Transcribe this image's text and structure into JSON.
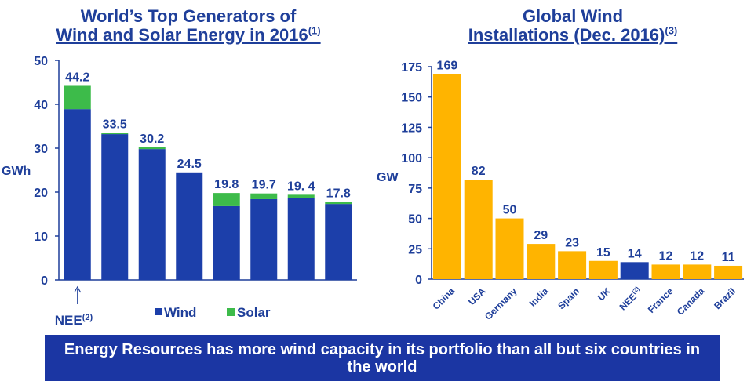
{
  "left_title": {
    "line1": "World’s Top Generators of",
    "line2": "Wind and Solar Energy in 2016",
    "sup": "(1)"
  },
  "right_title": {
    "line1": "Global Wind",
    "line2": "Installations (Dec. 2016)",
    "sup": "(3)"
  },
  "banner": "Energy Resources has more wind capacity in its portfolio than all but six countries in the world",
  "colors": {
    "wind": "#1c3faa",
    "solar": "#3dbb4a",
    "country": "#ffb400",
    "nee_highlight": "#1c3faa",
    "text": "#1f3f9a"
  },
  "chart_data": [
    {
      "type": "bar",
      "stacked": true,
      "ylabel": "GWh",
      "ylim": [
        0,
        50
      ],
      "yticks": [
        0,
        10,
        20,
        30,
        40,
        50
      ],
      "categories": [
        "NEE",
        "",
        "",
        "",
        "",
        "",
        "",
        ""
      ],
      "category_sup": [
        "(2)",
        "",
        "",
        "",
        "",
        "",
        "",
        ""
      ],
      "total_labels": [
        "44.2",
        "33.5",
        "30.2",
        "24.5",
        "19.8",
        "19.7",
        "19. 4",
        "17.8"
      ],
      "series": [
        {
          "name": "Wind",
          "values": [
            38.9,
            33.2,
            29.8,
            24.5,
            16.8,
            18.4,
            18.6,
            17.3
          ]
        },
        {
          "name": "Solar",
          "values": [
            5.3,
            0.3,
            0.4,
            0.0,
            3.0,
            1.3,
            0.8,
            0.5
          ]
        }
      ],
      "legend": "bottom"
    },
    {
      "type": "bar",
      "ylabel": "GW",
      "ylim": [
        0,
        175
      ],
      "yticks": [
        0,
        25,
        50,
        75,
        100,
        125,
        150,
        175
      ],
      "categories": [
        "China",
        "USA",
        "Germany",
        "India",
        "Spain",
        "UK",
        "NEE",
        "France",
        "Canada",
        "Brazil"
      ],
      "category_sup": [
        "",
        "",
        "",
        "",
        "",
        "",
        "(2)",
        "",
        "",
        ""
      ],
      "values": [
        169,
        82,
        50,
        29,
        23,
        15,
        14,
        12,
        12,
        11
      ],
      "data_labels": [
        "169",
        "82",
        "50",
        "29",
        "23",
        "15",
        "14",
        "12",
        "12",
        "11"
      ],
      "highlight_index": 6
    }
  ]
}
